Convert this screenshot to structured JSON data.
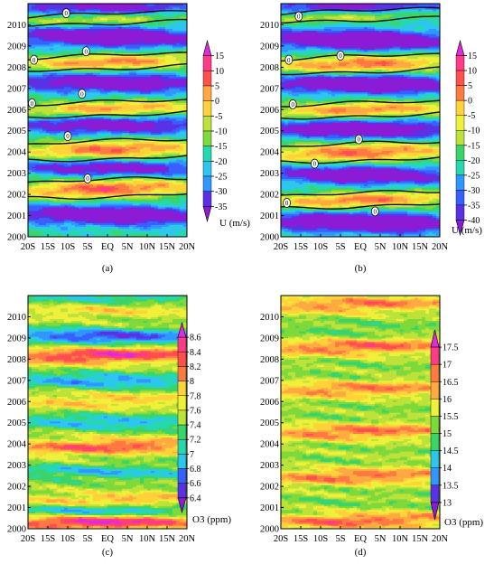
{
  "chart_data": [
    {
      "type": "heatmap",
      "panel_label": "(a)",
      "colorbar_label": "U (m/s)",
      "colorbar_ticks": [
        15,
        10,
        5,
        0,
        -5,
        -10,
        -15,
        -20,
        -25,
        -30,
        -35
      ],
      "x_tick_labels": [
        "20S",
        "15S",
        "10S",
        "5S",
        "EQ",
        "5N",
        "10N",
        "15N",
        "20N"
      ],
      "y_tick_labels": [
        "2000",
        "2001",
        "2002",
        "2003",
        "2004",
        "2005",
        "2006",
        "2007",
        "2008",
        "2009",
        "2010"
      ],
      "xlim": [
        -20,
        20
      ],
      "ylim": [
        2000,
        2011
      ],
      "vmin": -38,
      "vmax": 17,
      "colormap": "diverging-purple-blue-green-yellow-red-magenta",
      "zero_contour_labels": [
        {
          "x": -10.4,
          "y": 2010.55,
          "text": "0"
        },
        {
          "x": -5.4,
          "y": 2008.75,
          "text": "0"
        },
        {
          "x": -18.5,
          "y": 2008.35,
          "text": "0"
        },
        {
          "x": -6.4,
          "y": 2006.75,
          "text": "0"
        },
        {
          "x": -19.0,
          "y": 2006.3,
          "text": "0"
        },
        {
          "x": -10.0,
          "y": 2004.75,
          "text": "0"
        },
        {
          "x": -5.0,
          "y": 2002.75,
          "text": "0"
        }
      ],
      "westerly_bands": [
        {
          "center": 2002.3,
          "half_width": 0.38,
          "peak": 16
        },
        {
          "center": 2004.1,
          "half_width": 0.4,
          "peak": 15
        },
        {
          "center": 2006.05,
          "half_width": 0.3,
          "peak": 12
        },
        {
          "center": 2008.25,
          "half_width": 0.3,
          "peak": 13
        },
        {
          "center": 2010.3,
          "half_width": 0.22,
          "peak": 5
        }
      ],
      "easterly_bands": [
        {
          "center": 2001.05,
          "peak": -34
        },
        {
          "center": 2003.3,
          "peak": -30
        },
        {
          "center": 2005.3,
          "peak": -30
        },
        {
          "center": 2007.3,
          "peak": -32
        },
        {
          "center": 2009.45,
          "peak": -34
        },
        {
          "center": 2010.9,
          "peak": -28
        }
      ]
    },
    {
      "type": "heatmap",
      "panel_label": "(b)",
      "colorbar_label": "U (m/s)",
      "colorbar_ticks": [
        15,
        10,
        5,
        0,
        -5,
        -10,
        -15,
        -20,
        -25,
        -30,
        -35,
        -40
      ],
      "x_tick_labels": [
        "20S",
        "15S",
        "10S",
        "5S",
        "EQ",
        "5N",
        "10N",
        "15N",
        "20N"
      ],
      "y_tick_labels": [
        "2000",
        "2001",
        "2002",
        "2003",
        "2004",
        "2005",
        "2006",
        "2007",
        "2008",
        "2009",
        "2010"
      ],
      "xlim": [
        -20,
        20
      ],
      "ylim": [
        2000,
        2011
      ],
      "vmin": -42,
      "vmax": 17,
      "colormap": "diverging-purple-blue-green-yellow-red-magenta",
      "zero_contour_labels": [
        {
          "x": -15.5,
          "y": 2010.4,
          "text": "0"
        },
        {
          "x": -5.0,
          "y": 2008.55,
          "text": "0"
        },
        {
          "x": -18.0,
          "y": 2008.35,
          "text": "0"
        },
        {
          "x": -17.0,
          "y": 2006.25,
          "text": "0"
        },
        {
          "x": -0.4,
          "y": 2004.6,
          "text": "0"
        },
        {
          "x": -11.5,
          "y": 2003.45,
          "text": "0"
        },
        {
          "x": -18.5,
          "y": 2001.6,
          "text": "0"
        },
        {
          "x": 3.7,
          "y": 2001.2,
          "text": "0"
        }
      ],
      "westerly_bands": [
        {
          "center": 2001.75,
          "half_width": 0.3,
          "peak": 15
        },
        {
          "center": 2004.0,
          "half_width": 0.38,
          "peak": 16
        },
        {
          "center": 2006.0,
          "half_width": 0.3,
          "peak": 14
        },
        {
          "center": 2008.15,
          "half_width": 0.35,
          "peak": 16
        },
        {
          "center": 2010.45,
          "half_width": 0.22,
          "peak": 8
        }
      ],
      "easterly_bands": [
        {
          "center": 2000.7,
          "peak": -40
        },
        {
          "center": 2002.95,
          "peak": -34
        },
        {
          "center": 2005.1,
          "peak": -36
        },
        {
          "center": 2007.25,
          "peak": -38
        },
        {
          "center": 2009.3,
          "peak": -40
        },
        {
          "center": 2010.85,
          "peak": -30
        }
      ]
    },
    {
      "type": "heatmap",
      "panel_label": "(c)",
      "colorbar_label": "O3 (ppm)",
      "colorbar_ticks": [
        8.6,
        8.4,
        8.2,
        8,
        7.8,
        7.6,
        7.4,
        7.2,
        7,
        6.8,
        6.6,
        6.4
      ],
      "x_tick_labels": [
        "20S",
        "15S",
        "10S",
        "5S",
        "EQ",
        "5N",
        "10N",
        "15N",
        "20N"
      ],
      "y_tick_labels": [
        "2000",
        "2001",
        "2002",
        "2003",
        "2004",
        "2005",
        "2006",
        "2007",
        "2008",
        "2009",
        "2010"
      ],
      "xlim": [
        -20,
        20
      ],
      "ylim": [
        2000,
        2011
      ],
      "vmin": 6.3,
      "vmax": 8.7,
      "colormap": "diverging-purple-blue-green-yellow-red-magenta",
      "high_bands": [
        {
          "center": 2000.35,
          "peak": 8.6
        },
        {
          "center": 2001.3,
          "peak": 8.1
        },
        {
          "center": 2003.9,
          "peak": 8.3
        },
        {
          "center": 2006.05,
          "peak": 7.9
        },
        {
          "center": 2008.2,
          "peak": 8.5
        },
        {
          "center": 2010.3,
          "peak": 7.8
        }
      ],
      "low_bands": [
        {
          "center": 2000.9,
          "peak": 6.7
        },
        {
          "center": 2002.7,
          "peak": 7.0
        },
        {
          "center": 2005.05,
          "peak": 6.9
        },
        {
          "center": 2007.0,
          "peak": 6.8
        },
        {
          "center": 2009.1,
          "peak": 6.5
        },
        {
          "center": 2011.0,
          "peak": 7.0
        }
      ]
    },
    {
      "type": "heatmap",
      "panel_label": "(d)",
      "colorbar_label": "O3 (ppm)",
      "colorbar_ticks": [
        17.5,
        17,
        16.5,
        16,
        15.5,
        15,
        14.5,
        14,
        13.5,
        13
      ],
      "x_tick_labels": [
        "20S",
        "15S",
        "10S",
        "5S",
        "EQ",
        "5N",
        "10N",
        "15N",
        "20N"
      ],
      "y_tick_labels": [
        "2000",
        "2001",
        "2002",
        "2003",
        "2004",
        "2005",
        "2006",
        "2007",
        "2008",
        "2009",
        "2010"
      ],
      "xlim": [
        -20,
        20
      ],
      "ylim": [
        2000,
        2011
      ],
      "vmin": 12.8,
      "vmax": 17.8,
      "colormap": "diverging-purple-blue-green-yellow-red-magenta",
      "high_bands": [
        {
          "center": 2000.4,
          "peak": 16.9
        },
        {
          "center": 2002.5,
          "peak": 16.8
        },
        {
          "center": 2004.6,
          "peak": 16.8
        },
        {
          "center": 2006.6,
          "peak": 16.7
        },
        {
          "center": 2008.6,
          "peak": 16.9
        },
        {
          "center": 2010.6,
          "peak": 16.7
        }
      ],
      "low_bands": [
        {
          "center": 2001.3,
          "peak": 15.2
        },
        {
          "center": 2003.4,
          "peak": 15.3
        },
        {
          "center": 2005.5,
          "peak": 15.2
        },
        {
          "center": 2007.5,
          "peak": 15.2
        },
        {
          "center": 2009.4,
          "peak": 15.0
        }
      ]
    }
  ]
}
